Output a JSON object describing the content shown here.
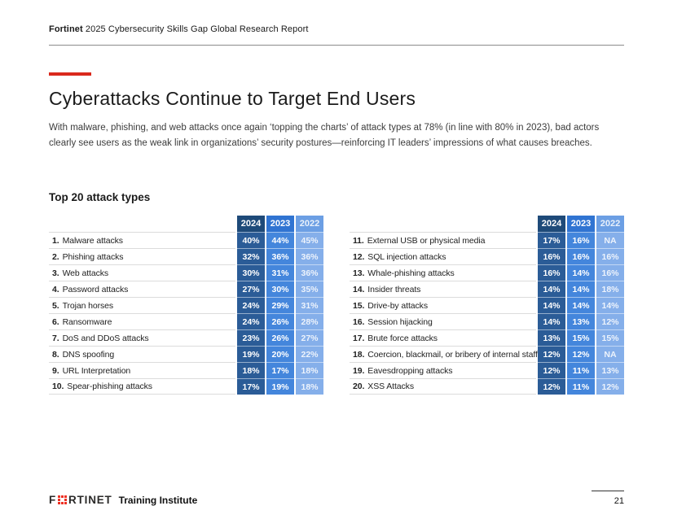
{
  "header": {
    "brand": "Fortinet",
    "report_title": "2025 Cybersecurity Skills Gap Global Research Report"
  },
  "title": "Cyberattacks Continue to Target End Users",
  "intro": "With malware, phishing, and web attacks once again ‘topping the charts’ of attack types at 78% (in line with 80% in 2023), bad actors clearly see users as the weak link in organizations’ security postures—reinforcing IT leaders’ impressions of what causes breaches.",
  "section_title": "Top 20 attack types",
  "footer": {
    "logo_prefix": "F",
    "logo_suffix": "RTINET",
    "label": "Training Institute",
    "page_number": "21"
  },
  "colors": {
    "accent_red": "#DA291C",
    "logo_red": "#EE3124",
    "header_rule": "#8C8C8C"
  },
  "chart_data": {
    "type": "table",
    "title": "Top 20 attack types",
    "columns": [
      "2024",
      "2023",
      "2022"
    ],
    "columns_style": [
      {
        "header_bg": "#1E4A79",
        "cell_bg": "#2B5C97",
        "text": "#FFFFFF"
      },
      {
        "header_bg": "#3074D2",
        "cell_bg": "#4486DC",
        "text": "#FFFFFF"
      },
      {
        "header_bg": "#6C9FE4",
        "cell_bg": "#85AFEA",
        "text": "rgba(255,255,255,0.85)"
      }
    ],
    "tables": [
      {
        "rows": [
          {
            "rank": "1.",
            "name": "Malware attacks",
            "values": [
              "40%",
              "44%",
              "45%"
            ]
          },
          {
            "rank": "2.",
            "name": "Phishing attacks",
            "values": [
              "32%",
              "36%",
              "36%"
            ]
          },
          {
            "rank": "3.",
            "name": "Web attacks",
            "values": [
              "30%",
              "31%",
              "36%"
            ]
          },
          {
            "rank": "4.",
            "name": "Password attacks",
            "values": [
              "27%",
              "30%",
              "35%"
            ]
          },
          {
            "rank": "5.",
            "name": "Trojan horses",
            "values": [
              "24%",
              "29%",
              "31%"
            ]
          },
          {
            "rank": "6.",
            "name": "Ransomware",
            "values": [
              "24%",
              "26%",
              "28%"
            ]
          },
          {
            "rank": "7.",
            "name": "DoS and DDoS attacks",
            "values": [
              "23%",
              "26%",
              "27%"
            ]
          },
          {
            "rank": "8.",
            "name": "DNS spoofing",
            "values": [
              "19%",
              "20%",
              "22%"
            ]
          },
          {
            "rank": "9.",
            "name": "URL Interpretation",
            "values": [
              "18%",
              "17%",
              "18%"
            ]
          },
          {
            "rank": "10.",
            "name": "Spear-phishing attacks",
            "values": [
              "17%",
              "19%",
              "18%"
            ]
          }
        ]
      },
      {
        "rows": [
          {
            "rank": "11.",
            "name": "External USB or physical media",
            "values": [
              "17%",
              "16%",
              "NA"
            ]
          },
          {
            "rank": "12.",
            "name": "SQL injection attacks",
            "values": [
              "16%",
              "16%",
              "16%"
            ]
          },
          {
            "rank": "13.",
            "name": "Whale-phishing attacks",
            "values": [
              "16%",
              "14%",
              "16%"
            ]
          },
          {
            "rank": "14.",
            "name": "Insider threats",
            "values": [
              "14%",
              "14%",
              "18%"
            ]
          },
          {
            "rank": "15.",
            "name": "Drive-by attacks",
            "values": [
              "14%",
              "14%",
              "14%"
            ]
          },
          {
            "rank": "16.",
            "name": "Session hijacking",
            "values": [
              "14%",
              "13%",
              "12%"
            ]
          },
          {
            "rank": "17.",
            "name": "Brute force attacks",
            "values": [
              "13%",
              "15%",
              "15%"
            ]
          },
          {
            "rank": "18.",
            "name": "Coercion, blackmail, or bribery of internal staff",
            "values": [
              "12%",
              "12%",
              "NA"
            ]
          },
          {
            "rank": "19.",
            "name": "Eavesdropping attacks",
            "values": [
              "12%",
              "11%",
              "13%"
            ]
          },
          {
            "rank": "20.",
            "name": "XSS Attacks",
            "values": [
              "12%",
              "11%",
              "12%"
            ]
          }
        ]
      }
    ]
  }
}
